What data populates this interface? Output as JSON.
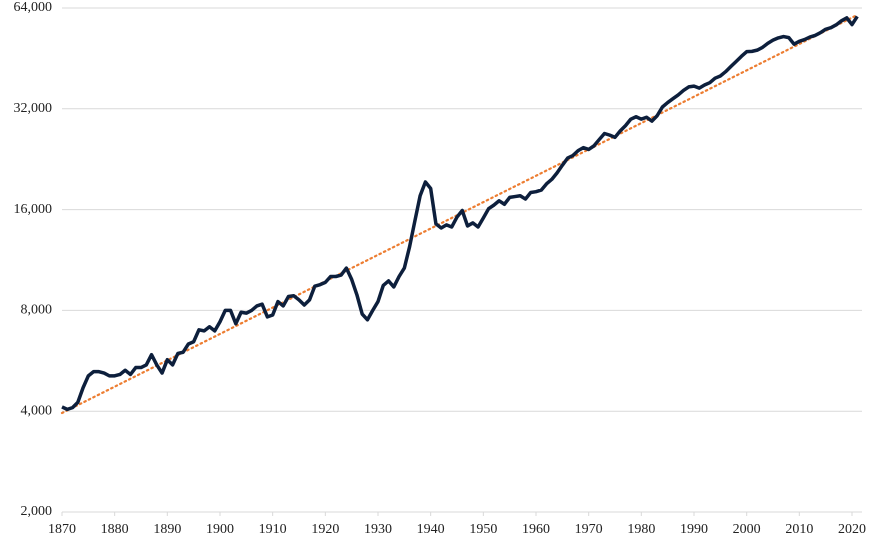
{
  "chart_data": {
    "type": "line",
    "yscale": "log",
    "grid": true,
    "xlim": [
      1870,
      2020
    ],
    "ylim": [
      2000,
      64000
    ],
    "xticks": [
      1870,
      1880,
      1890,
      1900,
      1910,
      1920,
      1930,
      1940,
      1950,
      1960,
      1970,
      1980,
      1990,
      2000,
      2010,
      2020
    ],
    "yticks": [
      {
        "value": 2000,
        "label": "2,000"
      },
      {
        "value": 4000,
        "label": "4,000"
      },
      {
        "value": 8000,
        "label": "8,000"
      },
      {
        "value": 16000,
        "label": "16,000"
      },
      {
        "value": 32000,
        "label": "32,000"
      },
      {
        "value": 64000,
        "label": "64,000"
      }
    ],
    "x": [
      1870,
      1871,
      1872,
      1873,
      1874,
      1875,
      1876,
      1877,
      1878,
      1879,
      1880,
      1881,
      1882,
      1883,
      1884,
      1885,
      1886,
      1887,
      1888,
      1889,
      1890,
      1891,
      1892,
      1893,
      1894,
      1895,
      1896,
      1897,
      1898,
      1899,
      1900,
      1901,
      1902,
      1903,
      1904,
      1905,
      1906,
      1907,
      1908,
      1909,
      1910,
      1911,
      1912,
      1913,
      1914,
      1915,
      1916,
      1917,
      1918,
      1919,
      1920,
      1921,
      1922,
      1923,
      1924,
      1925,
      1926,
      1927,
      1928,
      1929,
      1930,
      1931,
      1932,
      1933,
      1934,
      1935,
      1936,
      1937,
      1938,
      1939,
      1940,
      1941,
      1942,
      1943,
      1944,
      1945,
      1946,
      1947,
      1948,
      1949,
      1950,
      1951,
      1952,
      1953,
      1954,
      1955,
      1956,
      1957,
      1958,
      1959,
      1960,
      1961,
      1962,
      1963,
      1964,
      1965,
      1966,
      1967,
      1968,
      1969,
      1970,
      1971,
      1972,
      1973,
      1974,
      1975,
      1976,
      1977,
      1978,
      1979,
      1980,
      1981,
      1982,
      1983,
      1984,
      1985,
      1986,
      1987,
      1988,
      1989,
      1990,
      1991,
      1992,
      1993,
      1994,
      1995,
      1996,
      1997,
      1998,
      1999,
      2000,
      2001,
      2002,
      2003,
      2004,
      2005,
      2006,
      2007,
      2008,
      2009,
      2010,
      2011,
      2012,
      2013,
      2014,
      2015,
      2016,
      2017,
      2018,
      2019,
      2020,
      2021
    ],
    "series": [
      {
        "color": "#0d1f3c",
        "values": [
          4120,
          4050,
          4100,
          4250,
          4700,
          5100,
          5250,
          5250,
          5200,
          5100,
          5100,
          5150,
          5300,
          5150,
          5400,
          5400,
          5500,
          5900,
          5500,
          5200,
          5700,
          5500,
          5950,
          6000,
          6350,
          6450,
          7000,
          6950,
          7150,
          6950,
          7400,
          8000,
          8000,
          7300,
          7900,
          7850,
          8000,
          8250,
          8350,
          7650,
          7750,
          8500,
          8250,
          8800,
          8850,
          8600,
          8300,
          8600,
          9450,
          9550,
          9700,
          10100,
          10100,
          10200,
          10700,
          9900,
          8900,
          7800,
          7500,
          8000,
          8500,
          9500,
          9800,
          9400,
          10100,
          10700,
          12400,
          14800,
          17600,
          19350,
          18500,
          14500,
          14100,
          14400,
          14200,
          15200,
          15900,
          14300,
          14600,
          14200,
          15100,
          16100,
          16500,
          17000,
          16600,
          17400,
          17500,
          17600,
          17200,
          18000,
          18100,
          18300,
          19100,
          19700,
          20600,
          21700,
          22800,
          23200,
          24000,
          24500,
          24200,
          24800,
          25900,
          27000,
          26700,
          26300,
          27500,
          28500,
          29800,
          30300,
          29800,
          30200,
          29400,
          30500,
          32400,
          33400,
          34300,
          35200,
          36300,
          37200,
          37400,
          36900,
          37700,
          38300,
          39500,
          40100,
          41300,
          42800,
          44300,
          45900,
          47400,
          47500,
          47900,
          48800,
          50200,
          51300,
          52100,
          52600,
          52200,
          49900,
          50900,
          51500,
          52400,
          53000,
          54000,
          55300,
          55900,
          57000,
          58600,
          59800,
          57100,
          60400
        ]
      }
    ],
    "trend": {
      "x": [
        1870,
        2021
      ],
      "values": [
        3950,
        61000
      ],
      "color": "#ed7d31"
    }
  }
}
